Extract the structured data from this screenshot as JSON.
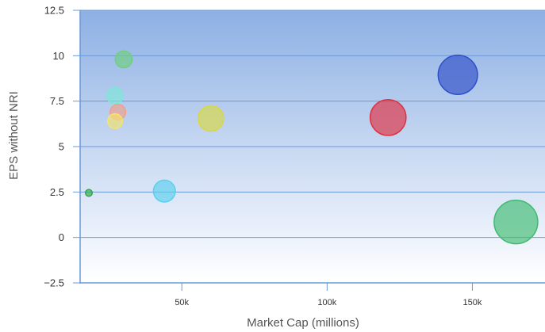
{
  "chart_data": {
    "type": "scatter",
    "variant": "bubble",
    "xlabel": "Market Cap (millions)",
    "ylabel": "EPS without NRI",
    "xlim": [
      15000,
      175000
    ],
    "ylim": [
      -2.5,
      12.5
    ],
    "y_ticks": [
      "12.5",
      "10",
      "7.5",
      "5",
      "2.5",
      "0",
      "−2.5"
    ],
    "x_ticks": [
      "50k",
      "100k",
      "150k"
    ],
    "grid": "horizontal",
    "background": "vertical gradient, light blue to white",
    "bubbles": [
      {
        "x": 18000,
        "y": 2.45,
        "size": 4.3,
        "color": "#2eaa4a"
      },
      {
        "x": 27000,
        "y": 6.4,
        "size": 9.3,
        "color": "#f4e46a"
      },
      {
        "x": 28000,
        "y": 6.9,
        "size": 9.8,
        "color": "#f2a08a"
      },
      {
        "x": 27000,
        "y": 7.8,
        "size": 10.3,
        "color": "#7ee6d8"
      },
      {
        "x": 30000,
        "y": 9.8,
        "size": 10.6,
        "color": "#6ecf7c"
      },
      {
        "x": 44000,
        "y": 2.55,
        "size": 13.8,
        "color": "#5ad0ee"
      },
      {
        "x": 60000,
        "y": 6.55,
        "size": 16.1,
        "color": "#d8d840"
      },
      {
        "x": 121000,
        "y": 6.6,
        "size": 22.6,
        "color": "#e03040"
      },
      {
        "x": 145000,
        "y": 8.95,
        "size": 24.8,
        "color": "#2f4fc8"
      },
      {
        "x": 165000,
        "y": 0.85,
        "size": 27.5,
        "color": "#3dbb70"
      }
    ]
  }
}
